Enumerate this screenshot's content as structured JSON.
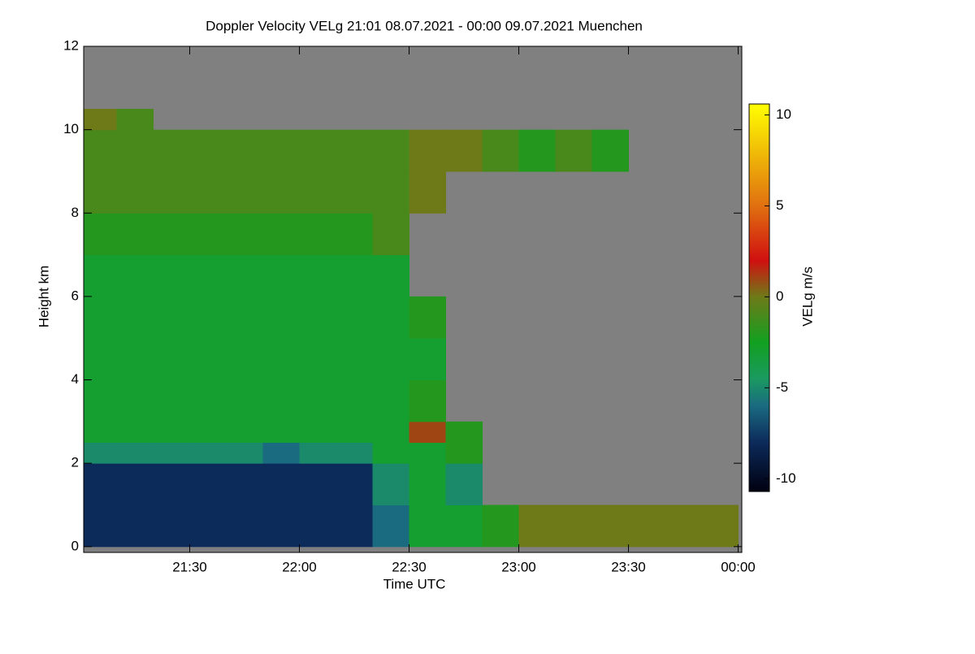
{
  "chart_data": {
    "type": "heatmap",
    "title": "Doppler Velocity VELg   21:01 08.07.2021 - 00:00 09.07.2021 Muenchen",
    "x_label": "Time UTC",
    "y_label": "Height km",
    "colorbar_label": "VELg m/s",
    "xlim": [
      1,
      181
    ],
    "ylim": [
      -0.14,
      12
    ],
    "xticks": [
      {
        "value": 30,
        "label": "21:30"
      },
      {
        "value": 60,
        "label": "22:00"
      },
      {
        "value": 90,
        "label": "22:30"
      },
      {
        "value": 120,
        "label": "23:00"
      },
      {
        "value": 150,
        "label": "23:30"
      },
      {
        "value": 180,
        "label": "00:00"
      }
    ],
    "yticks": [
      0,
      2,
      4,
      6,
      8,
      10,
      12
    ],
    "zlim": [
      -10.7,
      10.6
    ],
    "zticks": [
      -10,
      -5,
      0,
      5,
      10
    ],
    "nodata_color": "#808080",
    "colormap": [
      {
        "value": -10.7,
        "color": "#000010"
      },
      {
        "value": -8,
        "color": "#0c2a5a"
      },
      {
        "value": -6,
        "color": "#1a6a80"
      },
      {
        "value": -4.5,
        "color": "#1a9a60"
      },
      {
        "value": -2.5,
        "color": "#12a020"
      },
      {
        "value": 0,
        "color": "#6e7a18"
      },
      {
        "value": 2,
        "color": "#d01010"
      },
      {
        "value": 5,
        "color": "#e07010"
      },
      {
        "value": 10.6,
        "color": "#ffff00"
      }
    ],
    "xbins": [
      1,
      10,
      20,
      30,
      40,
      50,
      60,
      70,
      80,
      90,
      100,
      110,
      120,
      130,
      140,
      150,
      160,
      170,
      180
    ],
    "ybins": [
      0,
      1,
      2,
      2.5,
      3,
      4,
      5,
      6,
      7,
      8,
      9,
      10,
      10.5
    ],
    "z": [
      [
        -8,
        -8,
        -8,
        -8,
        -8,
        -8,
        -8,
        -8,
        -6,
        -3,
        -3,
        -2,
        0,
        0,
        0,
        0,
        0,
        0
      ],
      [
        -8,
        -8,
        -8,
        -8,
        -8,
        -8,
        -8,
        -8,
        -5,
        -3,
        -5,
        null,
        null,
        null,
        null,
        null,
        null,
        null
      ],
      [
        -5,
        -5,
        -5,
        -5,
        -5,
        -6,
        -5,
        -5,
        -3,
        -3,
        -2,
        null,
        null,
        null,
        null,
        null,
        null,
        null
      ],
      [
        -3,
        -3,
        -3,
        -3,
        -3,
        -3,
        -3,
        -3,
        -3,
        1,
        -2,
        null,
        null,
        null,
        null,
        null,
        null,
        null
      ],
      [
        -3,
        -3,
        -3,
        -3,
        -3,
        -3,
        -3,
        -3,
        -3,
        -2,
        null,
        null,
        null,
        null,
        null,
        null,
        null,
        null
      ],
      [
        -3,
        -3,
        -3,
        -3,
        -3,
        -3,
        -3,
        -3,
        -3,
        -3,
        null,
        null,
        null,
        null,
        null,
        null,
        null,
        null
      ],
      [
        -3,
        -3,
        -3,
        -3,
        -3,
        -3,
        -3,
        -3,
        -3,
        -2,
        null,
        null,
        null,
        null,
        null,
        null,
        null,
        null
      ],
      [
        -3,
        -3,
        -3,
        -3,
        -3,
        -3,
        -3,
        -3,
        -3,
        null,
        null,
        null,
        null,
        null,
        null,
        null,
        null,
        null
      ],
      [
        -2,
        -2,
        -2,
        -2,
        -2,
        -2,
        -2,
        -2,
        -1,
        null,
        null,
        null,
        null,
        null,
        null,
        null,
        null,
        null
      ],
      [
        -1,
        -1,
        -1,
        -1,
        -1,
        -1,
        -1,
        -1,
        -1,
        0,
        null,
        null,
        null,
        null,
        null,
        null,
        null,
        null
      ],
      [
        -1,
        -1,
        -1,
        -1,
        -1,
        -1,
        -1,
        -1,
        -1,
        0,
        0,
        -1,
        -2,
        -1,
        -2,
        null,
        null,
        null
      ],
      [
        0,
        -1,
        null,
        null,
        null,
        null,
        null,
        null,
        null,
        null,
        null,
        null,
        null,
        null,
        null,
        null,
        null,
        null
      ]
    ]
  }
}
